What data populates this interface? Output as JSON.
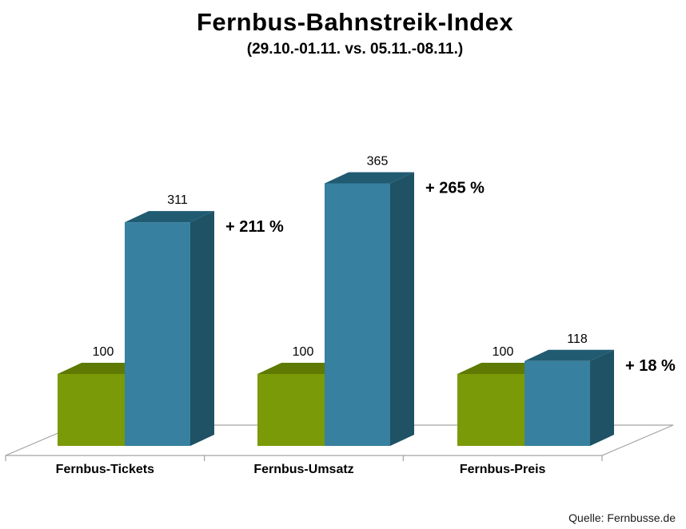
{
  "title": "Fernbus-Bahnstreik-Index",
  "subtitle": "(29.10.-01.11. vs. 05.11.-08.11.)",
  "source": "Quelle: Fernbusse.de",
  "chart_data": {
    "type": "bar",
    "style": "3d-column",
    "title": "Fernbus-Bahnstreik-Index",
    "subtitle": "(29.10.-01.11. vs. 05.11.-08.11.)",
    "categories": [
      "Fernbus-Tickets",
      "Fernbus-Umsatz",
      "Fernbus-Preis"
    ],
    "series": [
      {
        "name": "29.10.-01.11.",
        "values": [
          100,
          100,
          100
        ],
        "color_front": "#7B9A07",
        "color_top": "#5E7A02",
        "color_side": "#4F6A00"
      },
      {
        "name": "05.11.-08.11.",
        "values": [
          311,
          365,
          118
        ],
        "color_front": "#37809F",
        "color_top": "#215B72",
        "color_side": "#1F5264"
      }
    ],
    "value_labels": [
      [
        100,
        311
      ],
      [
        100,
        365
      ],
      [
        100,
        118
      ]
    ],
    "change_labels": [
      "+ 211 %",
      "+ 265 %",
      "+ 18 %"
    ],
    "baseline_value": 100,
    "legend": "none",
    "gridlines": false,
    "value_axis_visible": false,
    "axis_line_color": "#a3a3a3"
  }
}
